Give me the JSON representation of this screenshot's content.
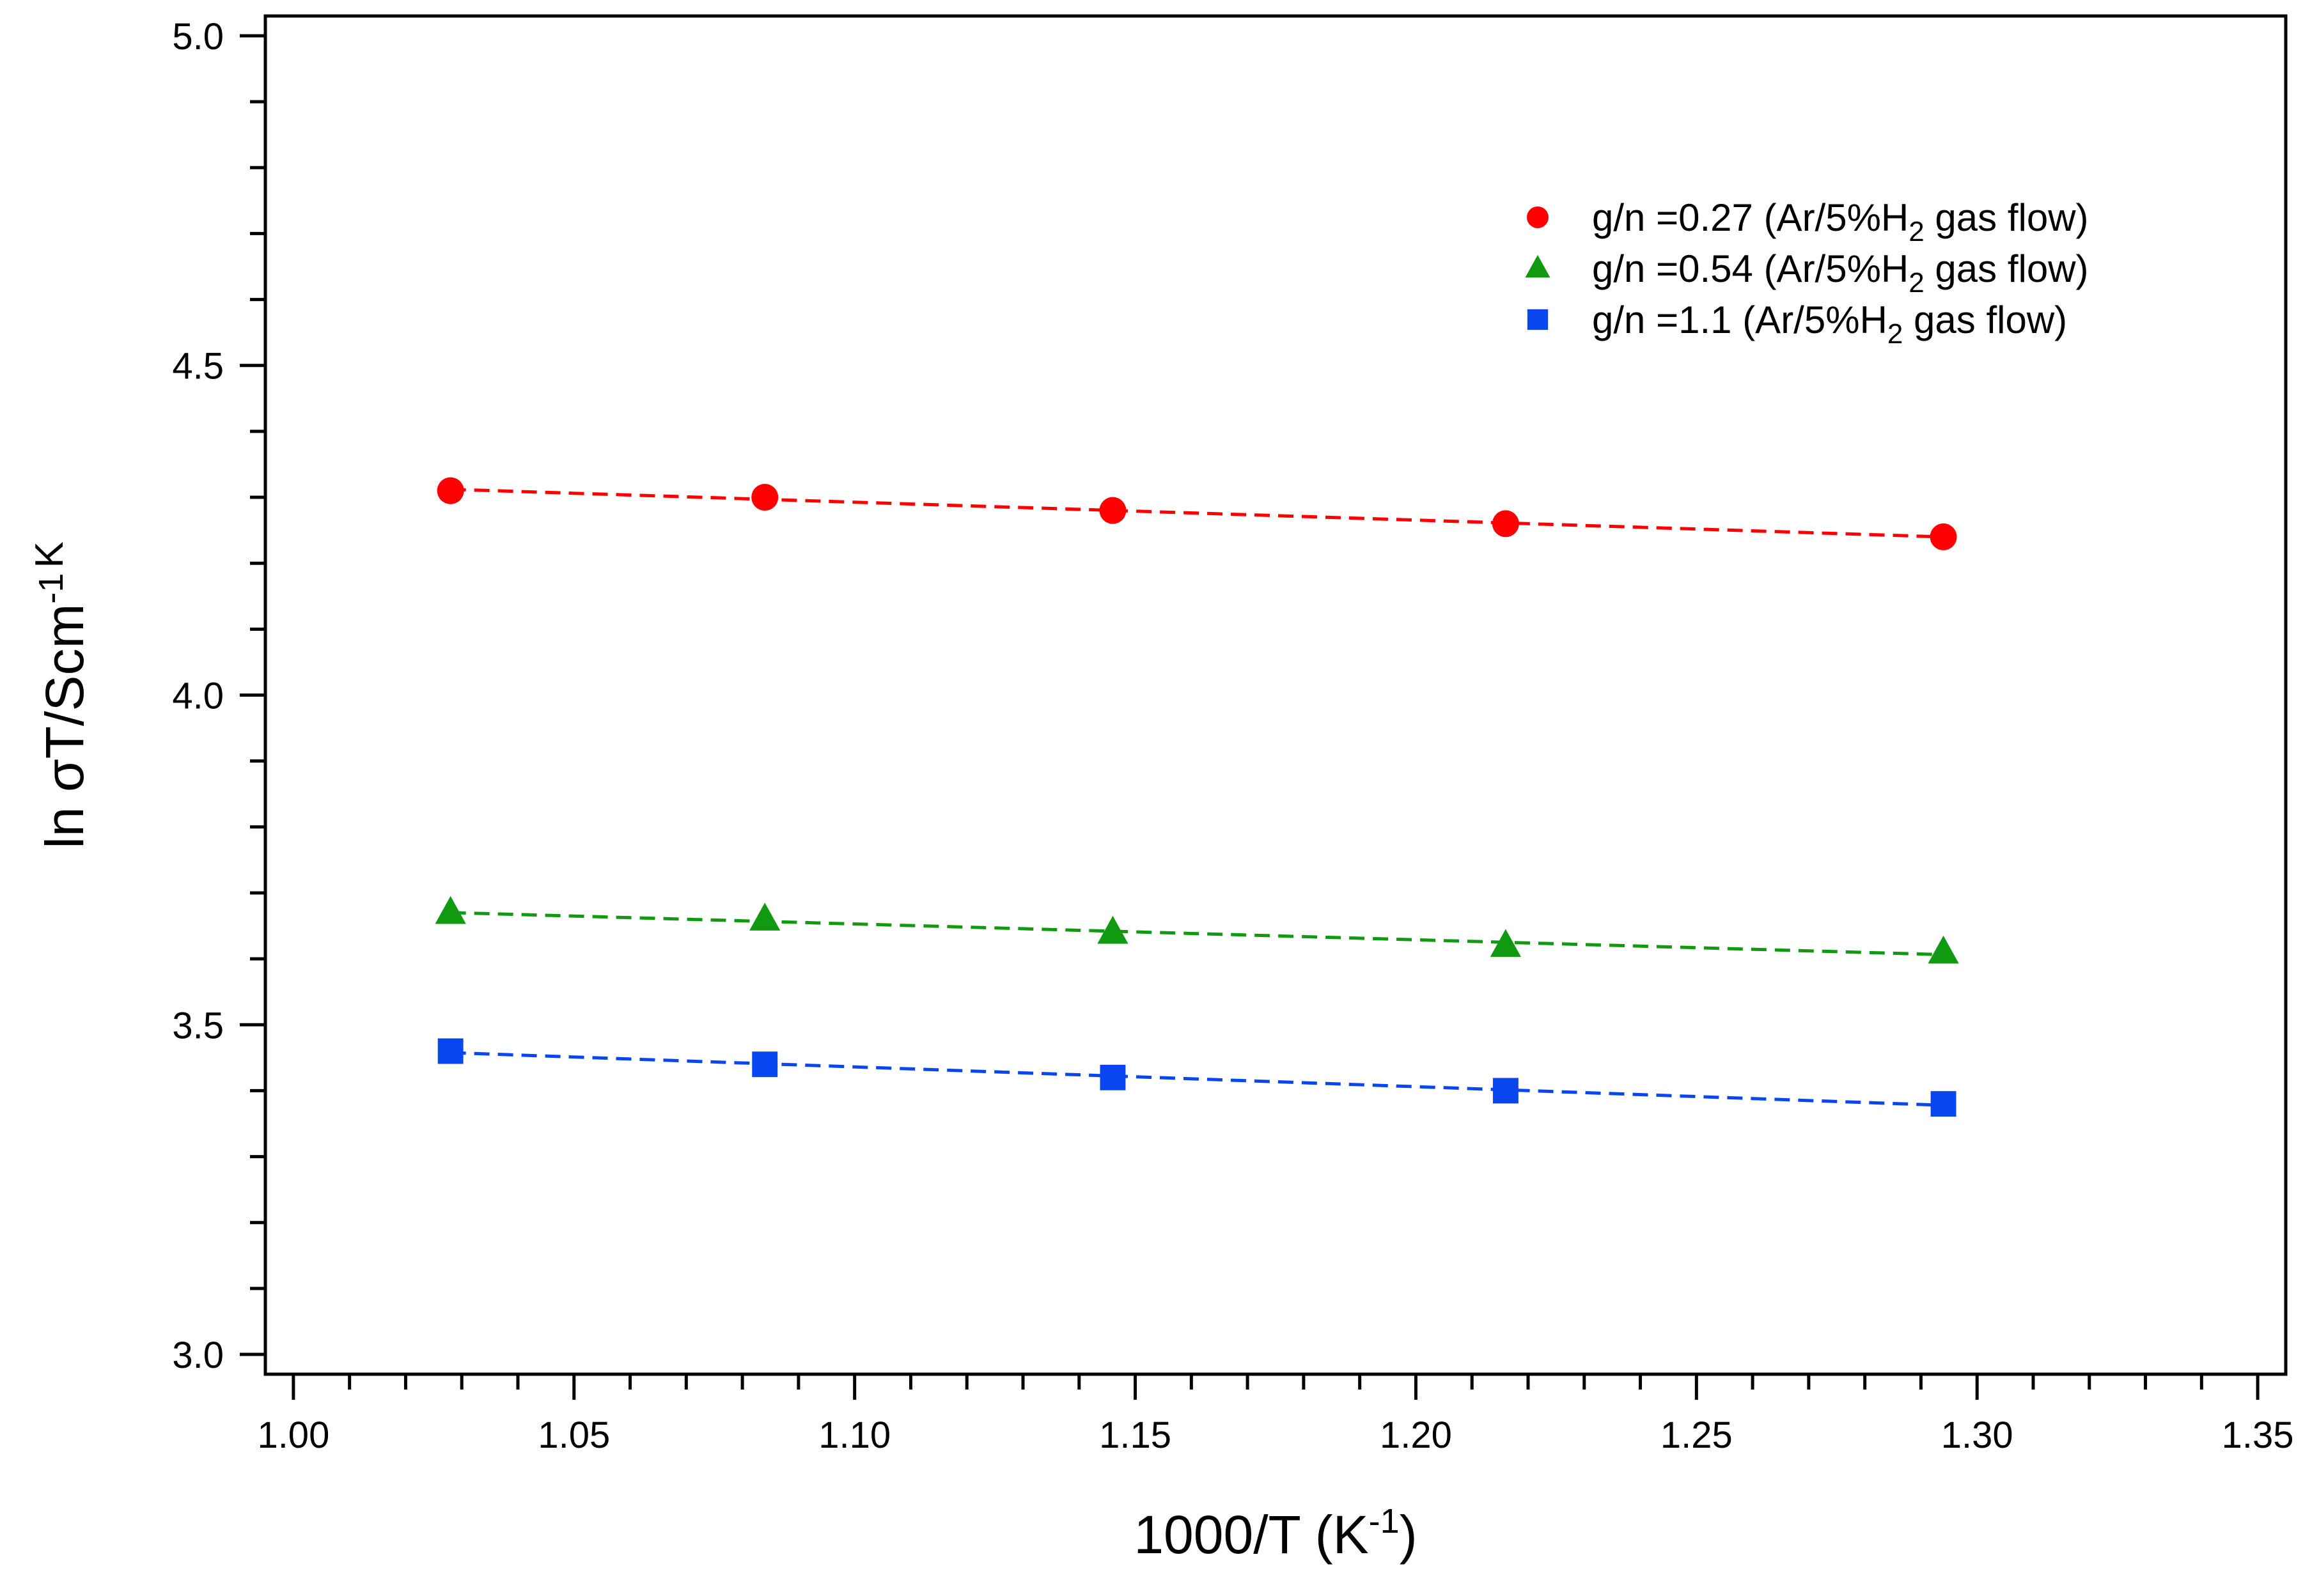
{
  "chart_data": {
    "type": "scatter",
    "title": "",
    "xlabel": {
      "main": "1000/T (K",
      "sup": "-1",
      "close": ")"
    },
    "ylabel": {
      "main": "ln σT/Scm",
      "sup": "-1",
      "tail": "K"
    },
    "xlim": [
      0.995,
      1.355
    ],
    "ylim": [
      2.97,
      5.03
    ],
    "xticks": [
      1.0,
      1.05,
      1.1,
      1.15,
      1.2,
      1.25,
      1.3,
      1.35
    ],
    "xtick_labels": [
      "1.00",
      "1.05",
      "1.10",
      "1.15",
      "1.20",
      "1.25",
      "1.30",
      "1.35"
    ],
    "x_minor_step": 0.01,
    "yticks": [
      3.0,
      3.5,
      4.0,
      4.5,
      5.0
    ],
    "ytick_labels": [
      "3.0",
      "3.5",
      "4.0",
      "4.5",
      "5.0"
    ],
    "y_minor_step": 0.1,
    "grid": false,
    "legend_position": "top-right",
    "series": [
      {
        "name": "g/n =0.27 (Ar/5%H2 gas flow)",
        "legend": {
          "pre": "g/n =0.27 (Ar/5%H",
          "sub": "2",
          "post": " gas flow)"
        },
        "marker": "circle",
        "color": "#ff0000",
        "fit_line": "dashed",
        "x": [
          1.028,
          1.084,
          1.146,
          1.216,
          1.294
        ],
        "y": [
          4.31,
          4.3,
          4.28,
          4.26,
          4.24
        ]
      },
      {
        "name": "g/n =0.54 (Ar/5%H2 gas flow)",
        "legend": {
          "pre": "g/n =0.54 (Ar/5%H",
          "sub": "2",
          "post": " gas flow)"
        },
        "marker": "triangle",
        "color": "#119a11",
        "fit_line": "dashed",
        "x": [
          1.028,
          1.084,
          1.146,
          1.216,
          1.294
        ],
        "y": [
          3.67,
          3.66,
          3.64,
          3.62,
          3.61
        ]
      },
      {
        "name": "g/n =1.1 (Ar/5%H2 gas flow)",
        "legend": {
          "pre": "g/n =1.1 (Ar/5%H",
          "sub": "2",
          "post": " gas flow)"
        },
        "marker": "square",
        "color": "#0a46f0",
        "fit_line": "dashed",
        "x": [
          1.028,
          1.084,
          1.146,
          1.216,
          1.294
        ],
        "y": [
          3.46,
          3.44,
          3.42,
          3.4,
          3.38
        ]
      }
    ]
  }
}
